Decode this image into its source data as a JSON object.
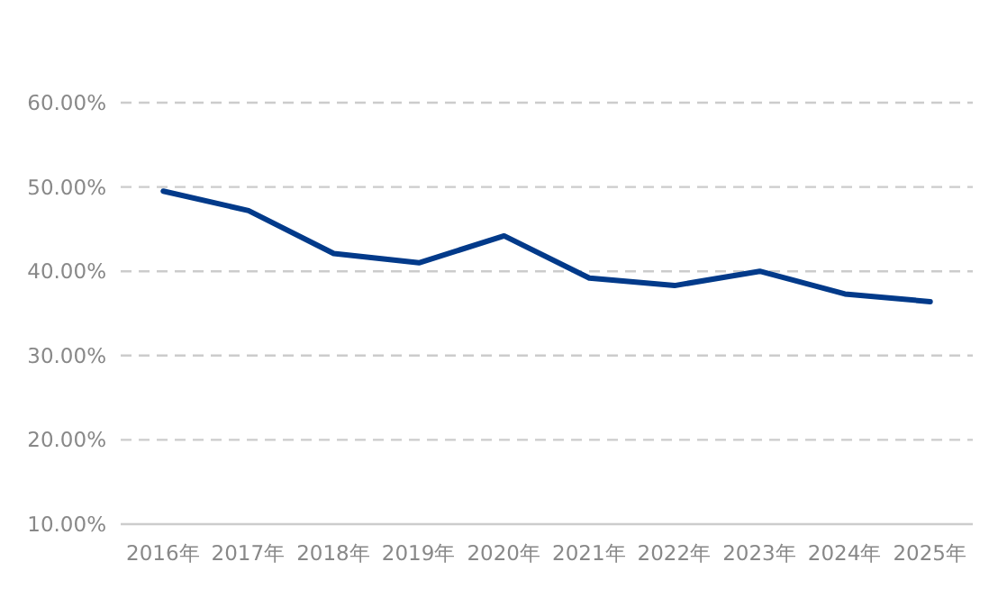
{
  "chart_data": {
    "type": "line",
    "categories": [
      "2016年",
      "2017年",
      "2018年",
      "2019年",
      "2020年",
      "2021年",
      "2022年",
      "2023年",
      "2024年",
      "2025年"
    ],
    "series": [
      {
        "color": "#023a8a",
        "values": [
          49.5,
          47.2,
          42.1,
          41.0,
          44.2,
          39.2,
          38.3,
          40.0,
          37.3,
          36.4
        ]
      }
    ],
    "ylim": [
      10,
      60
    ],
    "yticks": [
      {
        "value": 10,
        "label": "10.00%"
      },
      {
        "value": 20,
        "label": "20.00%"
      },
      {
        "value": 30,
        "label": "30.00%"
      },
      {
        "value": 40,
        "label": "40.00%"
      },
      {
        "value": 50,
        "label": "50.00%"
      },
      {
        "value": 60,
        "label": "60.00%"
      }
    ],
    "grid": "y",
    "line_style": "solid",
    "marker": "none"
  }
}
